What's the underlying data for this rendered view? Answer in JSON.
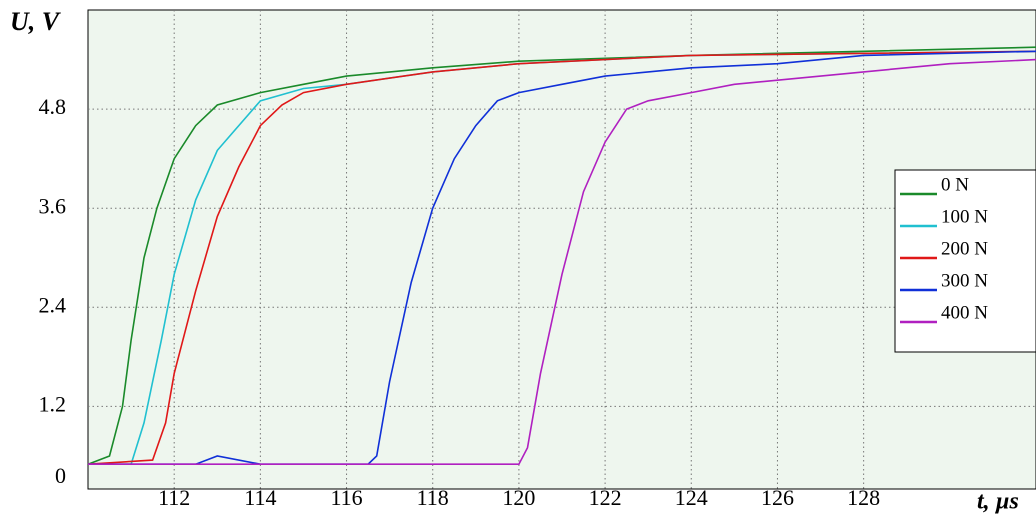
{
  "chart_data": {
    "type": "line",
    "y_axis_label": "U, V",
    "x_axis_label": "t, µs",
    "origin_label": "0",
    "xlim": [
      110,
      132
    ],
    "ylim": [
      0.2,
      6.0
    ],
    "xticks": [
      112,
      114,
      116,
      118,
      120,
      122,
      124,
      126,
      128
    ],
    "yticks": [
      1.2,
      2.4,
      3.6,
      4.8
    ],
    "grid": true,
    "legend": "right",
    "series": [
      {
        "name": "0 N",
        "color": "#1a8a2a",
        "x": [
          110,
          110.5,
          110.8,
          111,
          111.3,
          111.6,
          112,
          112.5,
          113,
          114,
          115,
          116,
          118,
          120,
          124,
          128,
          132
        ],
        "values": [
          0.5,
          0.6,
          1.2,
          2.0,
          3.0,
          3.6,
          4.2,
          4.6,
          4.85,
          5.0,
          5.1,
          5.2,
          5.3,
          5.38,
          5.45,
          5.5,
          5.55
        ]
      },
      {
        "name": "100 N",
        "color": "#20c0d0",
        "x": [
          110,
          111,
          111.3,
          111.7,
          112,
          112.5,
          113,
          113.5,
          114,
          115,
          116,
          118,
          120,
          124,
          132
        ],
        "values": [
          0.5,
          0.5,
          1.0,
          2.0,
          2.8,
          3.7,
          4.3,
          4.6,
          4.9,
          5.05,
          5.1,
          5.25,
          5.35,
          5.45,
          5.5
        ]
      },
      {
        "name": "200 N",
        "color": "#e01818",
        "x": [
          110,
          111.5,
          111.8,
          112,
          112.5,
          113,
          113.5,
          114,
          114.5,
          115,
          116,
          118,
          120,
          124,
          132
        ],
        "values": [
          0.5,
          0.55,
          1.0,
          1.6,
          2.6,
          3.5,
          4.1,
          4.6,
          4.85,
          5.0,
          5.1,
          5.25,
          5.35,
          5.45,
          5.5
        ]
      },
      {
        "name": "300 N",
        "color": "#1030d8",
        "x": [
          110,
          112.5,
          113,
          114,
          116.5,
          116.7,
          117,
          117.5,
          118,
          118.5,
          119,
          119.5,
          120,
          121,
          122,
          124,
          126,
          128,
          132
        ],
        "values": [
          0.5,
          0.5,
          0.6,
          0.5,
          0.5,
          0.6,
          1.5,
          2.7,
          3.6,
          4.2,
          4.6,
          4.9,
          5.0,
          5.1,
          5.2,
          5.3,
          5.35,
          5.45,
          5.5
        ]
      },
      {
        "name": "400 N",
        "color": "#b020c0",
        "x": [
          110,
          120,
          120.2,
          120.5,
          121,
          121.5,
          122,
          122.5,
          123,
          124,
          125,
          126,
          128,
          130,
          132
        ],
        "values": [
          0.5,
          0.5,
          0.7,
          1.6,
          2.8,
          3.8,
          4.4,
          4.8,
          4.9,
          5.0,
          5.1,
          5.15,
          5.25,
          5.35,
          5.4
        ]
      }
    ]
  }
}
